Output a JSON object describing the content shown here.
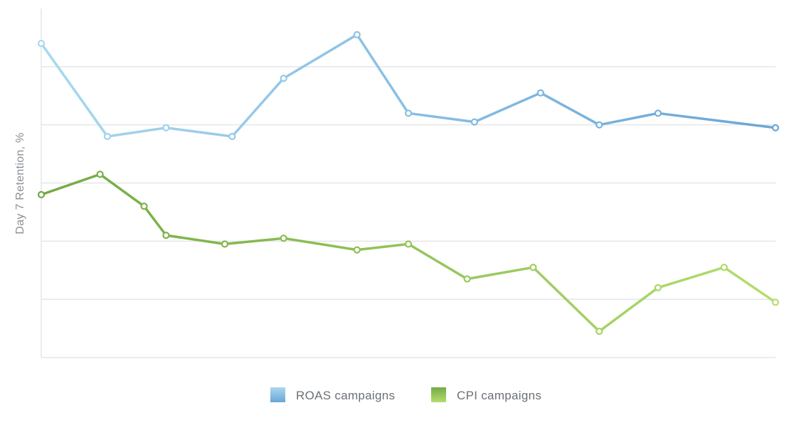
{
  "chart_data": {
    "type": "line",
    "title": "",
    "xlabel": "",
    "ylabel": "Day 7 Retention, %",
    "ylim": [
      0,
      6
    ],
    "grid": true,
    "y_ticks": [
      1,
      2,
      3,
      4,
      5
    ],
    "legend_position": "bottom-center",
    "series": [
      {
        "name": "ROAS campaigns",
        "color_start": "#a8d8f0",
        "color_end": "#6aa6d6",
        "x": [
          0,
          0.09,
          0.17,
          0.26,
          0.33,
          0.43,
          0.5,
          0.59,
          0.68,
          0.76,
          0.84,
          1.0
        ],
        "values": [
          5.4,
          3.8,
          3.95,
          3.8,
          4.8,
          5.55,
          4.2,
          4.05,
          4.55,
          4.0,
          4.2,
          3.95
        ]
      },
      {
        "name": "CPI campaigns",
        "color_start": "#74aa45",
        "color_end": "#b4de6e",
        "x": [
          0,
          0.08,
          0.14,
          0.17,
          0.25,
          0.33,
          0.43,
          0.5,
          0.58,
          0.67,
          0.76,
          0.84,
          0.93,
          1.0
        ],
        "values": [
          2.8,
          3.15,
          2.6,
          2.1,
          1.95,
          2.05,
          1.85,
          1.95,
          1.35,
          1.55,
          0.45,
          1.2,
          1.55,
          0.95
        ]
      }
    ]
  }
}
